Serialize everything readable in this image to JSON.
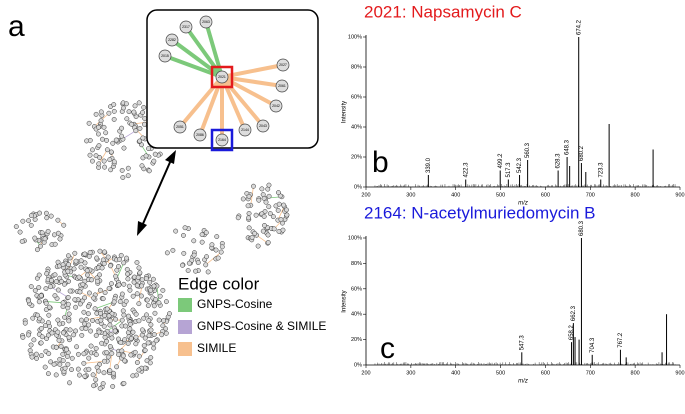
{
  "figure": {
    "a": {
      "label": "a",
      "inset_nodes": [
        "2063",
        "2317",
        "2282",
        "2015",
        "2021",
        "2027",
        "2061",
        "2042",
        "2043",
        "2144",
        "2086",
        "2051",
        "2164"
      ],
      "legend": {
        "title": "Edge color",
        "items": [
          {
            "name": "GNPS-Cosine",
            "color": "#7cc97a"
          },
          {
            "name": "GNPS-Cosine & SIMILE",
            "color": "#b6a4d4"
          },
          {
            "name": "SIMILE",
            "color": "#f7c08e"
          }
        ]
      }
    },
    "b": {
      "label": "b",
      "title": "2021: Napsamycin C",
      "title_color": "#e31a1c",
      "xlabel": "m/z",
      "ylabel": "Intensity",
      "xlim": [
        200,
        900
      ],
      "xticks": [
        200,
        300,
        400,
        500,
        600,
        700,
        800,
        900
      ],
      "ylim": [
        0,
        100
      ],
      "yticks": [
        {
          "value": 0,
          "label": "0%"
        },
        {
          "value": 20,
          "label": "20%"
        },
        {
          "value": 40,
          "label": "40%"
        },
        {
          "value": 60,
          "label": "60%"
        },
        {
          "value": 80,
          "label": "80%"
        },
        {
          "value": 100,
          "label": "100%"
        }
      ],
      "peaks": {
        "x": [
          339.0,
          422.3,
          499.2,
          517.3,
          542.3,
          560.3,
          628.3,
          648.3,
          674.2,
          680.2,
          723.3
        ],
        "value_labels": [
          "339.0",
          "422.3",
          "499.2",
          "517.3",
          "542.3",
          "560.3",
          "628.3",
          "648.3",
          "674.2",
          "680.2",
          "723.3"
        ],
        "values": [
          8,
          5,
          11,
          5,
          8,
          18,
          11,
          20,
          100,
          16,
          5
        ]
      },
      "other_peaks": {
        "x": [
          654,
          690,
          742,
          840
        ],
        "values": [
          14,
          10,
          42,
          25
        ]
      }
    },
    "c": {
      "label": "c",
      "title": "2164: N-acetylmuriedomycin B",
      "title_color": "#1a1adb",
      "xlabel": "m/z",
      "ylabel": "Intensity",
      "xlim": [
        200,
        900
      ],
      "xticks": [
        200,
        300,
        400,
        500,
        600,
        700,
        800,
        900
      ],
      "ylim": [
        0,
        100
      ],
      "yticks": [
        {
          "value": 0,
          "label": "0%"
        },
        {
          "value": 20,
          "label": "20%"
        },
        {
          "value": 40,
          "label": "40%"
        },
        {
          "value": 60,
          "label": "60%"
        },
        {
          "value": 80,
          "label": "80%"
        },
        {
          "value": 100,
          "label": "100%"
        }
      ],
      "peaks": {
        "x": [
          547.3,
          658.2,
          662.3,
          680.3,
          704.3,
          767.2
        ],
        "value_labels": [
          "547.3",
          "658.2",
          "662.3",
          "680.3",
          "704.3",
          "767.2"
        ],
        "values": [
          10,
          18,
          33,
          100,
          8,
          12
        ]
      },
      "other_peaks": {
        "x": [
          666,
          675,
          780,
          860,
          870
        ],
        "values": [
          22,
          20,
          6,
          10,
          40
        ]
      }
    }
  }
}
